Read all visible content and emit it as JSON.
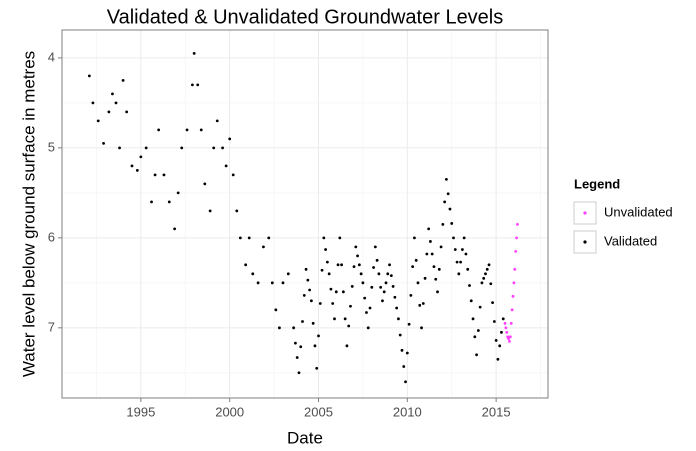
{
  "chart_data": {
    "type": "scatter",
    "title": "Validated & Unvalidated Groundwater Levels",
    "x_label": "Date",
    "y_label": "Water level below ground surface in metres",
    "legend_title": "Legend",
    "legend": "right",
    "grid": true,
    "xlim": [
      1990.56,
      2017.92
    ],
    "ylim": [
      7.78,
      3.69
    ],
    "xticks": [
      1995,
      2000,
      2005,
      2010,
      2015
    ],
    "yticks": [
      4,
      5,
      6,
      7
    ],
    "xminor": [
      1992.5,
      1997.5,
      2002.5,
      2007.5,
      2012.5,
      2017.5
    ],
    "yminor": [
      4.5,
      5.5,
      6.5,
      7.5
    ],
    "series": [
      {
        "name": "Unvalidated",
        "color": "#ff40ff",
        "x": [
          2015.5,
          2015.55,
          2015.6,
          2015.65,
          2015.7,
          2015.75,
          2015.8,
          2015.85,
          2015.9,
          2015.95,
          2016.0,
          2016.05,
          2016.1,
          2016.15,
          2016.2
        ],
        "values": [
          6.95,
          7.0,
          7.05,
          7.1,
          7.12,
          7.15,
          7.1,
          6.95,
          6.8,
          6.65,
          6.5,
          6.35,
          6.15,
          6.0,
          5.85
        ]
      },
      {
        "name": "Validated",
        "color": "#000000",
        "x": [
          1992.1,
          1992.3,
          1992.6,
          1992.9,
          1993.2,
          1993.4,
          1993.6,
          1993.8,
          1994.0,
          1994.2,
          1994.5,
          1994.8,
          1995.0,
          1995.3,
          1995.6,
          1995.8,
          1996.0,
          1996.3,
          1996.6,
          1996.9,
          1997.1,
          1997.3,
          1997.6,
          1997.9,
          1998.0,
          1998.2,
          1998.4,
          1998.6,
          1998.9,
          1999.1,
          1999.3,
          1999.6,
          1999.8,
          2000.0,
          2000.2,
          2000.4,
          2000.6,
          2000.9,
          2001.1,
          2001.3,
          2001.6,
          2001.9,
          2002.2,
          2002.4,
          2002.6,
          2002.8,
          2003.0,
          2003.3,
          2003.6,
          2003.7,
          2003.8,
          2003.9,
          2004.0,
          2004.1,
          2004.2,
          2004.3,
          2004.4,
          2004.5,
          2004.6,
          2004.7,
          2004.8,
          2004.9,
          2005.0,
          2005.1,
          2005.2,
          2005.3,
          2005.4,
          2005.5,
          2005.6,
          2005.7,
          2005.8,
          2005.9,
          2006.0,
          2006.1,
          2006.2,
          2006.3,
          2006.4,
          2006.5,
          2006.6,
          2006.7,
          2006.8,
          2006.9,
          2007.0,
          2007.1,
          2007.2,
          2007.3,
          2007.4,
          2007.5,
          2007.6,
          2007.7,
          2007.8,
          2007.9,
          2008.0,
          2008.1,
          2008.2,
          2008.3,
          2008.4,
          2008.5,
          2008.6,
          2008.7,
          2008.8,
          2008.9,
          2009.0,
          2009.1,
          2009.2,
          2009.3,
          2009.4,
          2009.5,
          2009.6,
          2009.7,
          2009.8,
          2009.9,
          2010.0,
          2010.1,
          2010.2,
          2010.3,
          2010.4,
          2010.5,
          2010.6,
          2010.7,
          2010.8,
          2010.9,
          2011.0,
          2011.1,
          2011.2,
          2011.3,
          2011.4,
          2011.5,
          2011.6,
          2011.7,
          2011.8,
          2011.9,
          2012.0,
          2012.1,
          2012.2,
          2012.3,
          2012.4,
          2012.5,
          2012.6,
          2012.7,
          2012.8,
          2012.9,
          2013.0,
          2013.1,
          2013.2,
          2013.3,
          2013.4,
          2013.5,
          2013.6,
          2013.7,
          2013.8,
          2013.9,
          2014.0,
          2014.1,
          2014.2,
          2014.3,
          2014.4,
          2014.5,
          2014.6,
          2014.7,
          2014.8,
          2014.9,
          2015.0,
          2015.1,
          2015.2,
          2015.3,
          2015.4
        ],
        "values": [
          4.2,
          4.5,
          4.7,
          4.95,
          4.6,
          4.4,
          4.5,
          5.0,
          4.25,
          4.6,
          5.2,
          5.25,
          5.1,
          5.0,
          5.6,
          5.3,
          4.8,
          5.3,
          5.6,
          5.9,
          5.5,
          5.0,
          4.8,
          4.3,
          3.95,
          4.3,
          4.8,
          5.4,
          5.7,
          5.0,
          4.7,
          5.0,
          5.2,
          4.9,
          5.3,
          5.7,
          6.0,
          6.3,
          6.0,
          6.4,
          6.5,
          6.1,
          6.0,
          6.5,
          6.8,
          7.0,
          6.5,
          6.4,
          7.0,
          7.17,
          7.33,
          7.5,
          7.21,
          6.93,
          6.64,
          6.35,
          6.47,
          6.58,
          6.7,
          6.95,
          7.2,
          7.45,
          7.09,
          6.73,
          6.36,
          6.0,
          6.13,
          6.27,
          6.4,
          6.57,
          6.73,
          6.9,
          6.6,
          6.3,
          6.0,
          6.3,
          6.6,
          6.9,
          7.2,
          6.98,
          6.76,
          6.54,
          6.32,
          6.1,
          6.2,
          6.3,
          6.4,
          6.5,
          6.67,
          6.83,
          7.0,
          6.78,
          6.55,
          6.33,
          6.1,
          6.25,
          6.4,
          6.55,
          6.7,
          6.6,
          6.5,
          6.4,
          6.3,
          6.42,
          6.54,
          6.66,
          6.78,
          6.9,
          7.08,
          7.25,
          7.43,
          7.6,
          7.28,
          6.96,
          6.64,
          6.32,
          6.0,
          6.25,
          6.5,
          6.75,
          7.0,
          6.73,
          6.45,
          6.18,
          5.9,
          6.04,
          6.18,
          6.32,
          6.46,
          6.6,
          6.35,
          6.1,
          5.85,
          5.6,
          5.35,
          5.51,
          5.68,
          5.84,
          6.0,
          6.13,
          6.27,
          6.4,
          6.27,
          6.13,
          6.0,
          6.18,
          6.35,
          6.53,
          6.7,
          6.9,
          7.1,
          7.3,
          7.03,
          6.77,
          6.5,
          6.45,
          6.4,
          6.35,
          6.3,
          6.51,
          6.72,
          6.93,
          7.14,
          7.35,
          7.2,
          7.05,
          6.9
        ]
      }
    ]
  }
}
